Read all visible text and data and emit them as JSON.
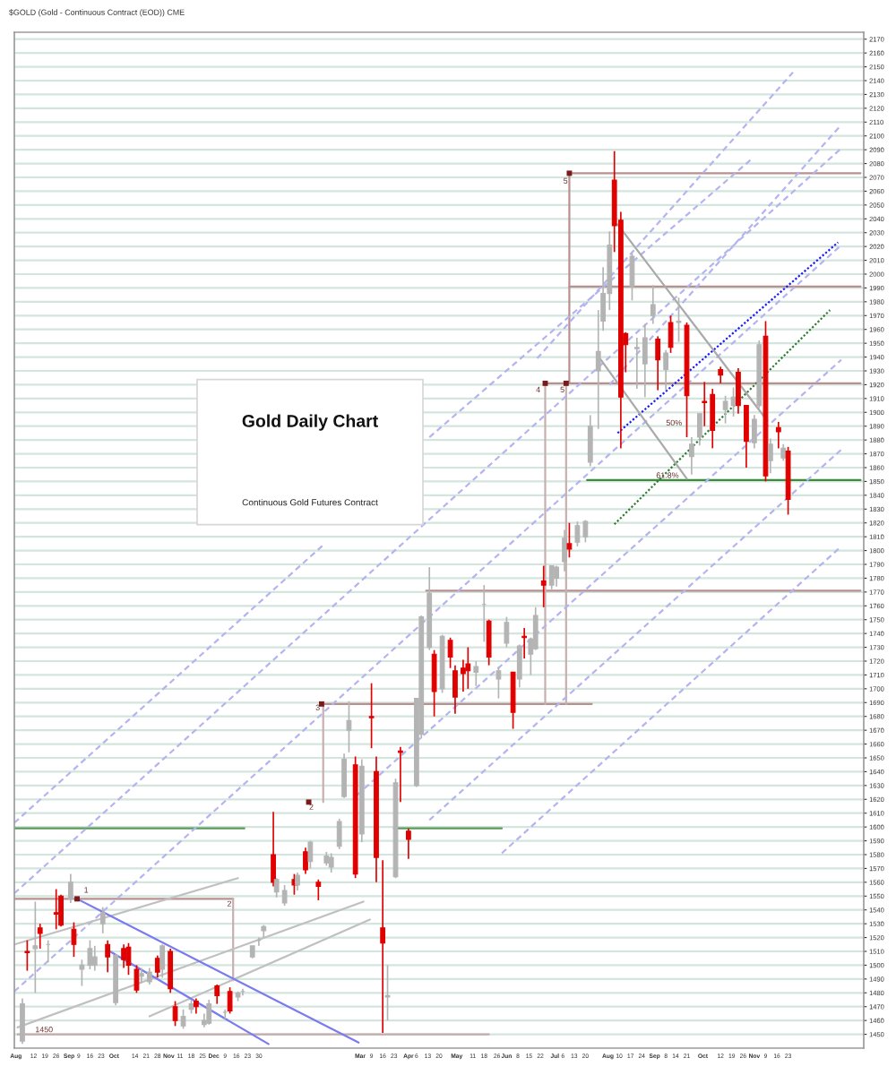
{
  "chart_data": {
    "type": "candlestick",
    "title": "Gold Daily Chart",
    "subtitle": "Continuous Gold Futures Contract",
    "annotations": [
      "$GOLD (Gold - Continuous Contract (EOD)) CME",
      {
        "text": "5",
        "x": "2020-07-09",
        "y": 2067
      },
      {
        "text": "4",
        "x": "2020-06-22",
        "y": 1916
      },
      {
        "text": "5",
        "x": "2020-07-07",
        "y": 1916
      },
      {
        "text": "3",
        "x": "2020-02-06",
        "y": 1686
      },
      {
        "text": "2",
        "x": "2020-02-02",
        "y": 1614
      },
      {
        "text": "1",
        "x": "2019-09-15",
        "y": 1554
      },
      {
        "text": "2",
        "x": "2019-12-13",
        "y": 1544
      },
      {
        "text": "50%",
        "x": "2020-09-18",
        "y": 1892
      },
      {
        "text": "61.8%",
        "x": "2020-09-16",
        "y": 1854
      },
      {
        "text": "1450",
        "x": "2019-08-24",
        "y": 1453
      }
    ],
    "x": [
      "2019-08-05",
      "2019-08-08",
      "2019-08-13",
      "2019-08-16",
      "2019-08-21",
      "2019-08-26",
      "2019-08-29",
      "2019-09-04",
      "2019-09-06",
      "2019-09-11",
      "2019-09-16",
      "2019-09-19",
      "2019-09-24",
      "2019-09-27",
      "2019-10-02",
      "2019-10-07",
      "2019-10-10",
      "2019-10-15",
      "2019-10-18",
      "2019-10-23",
      "2019-10-28",
      "2019-10-31",
      "2019-11-05",
      "2019-11-08",
      "2019-11-13",
      "2019-11-18",
      "2019-11-21",
      "2019-11-26",
      "2019-11-29",
      "2019-12-04",
      "2019-12-09",
      "2019-12-12",
      "2019-12-17",
      "2019-12-20",
      "2019-12-26",
      "2019-12-30",
      "2020-01-02",
      "2020-01-08",
      "2020-01-10",
      "2020-01-15",
      "2020-01-21",
      "2020-01-23",
      "2020-01-28",
      "2020-01-31",
      "2020-02-05",
      "2020-02-10",
      "2020-02-13",
      "2020-02-18",
      "2020-02-21",
      "2020-02-24",
      "2020-02-28",
      "2020-03-03",
      "2020-03-09",
      "2020-03-12",
      "2020-03-16",
      "2020-03-19",
      "2020-03-24",
      "2020-03-27",
      "2020-04-01",
      "2020-04-06",
      "2020-04-09",
      "2020-04-14",
      "2020-04-17",
      "2020-04-22",
      "2020-04-27",
      "2020-04-30",
      "2020-05-05",
      "2020-05-08",
      "2020-05-13",
      "2020-05-18",
      "2020-05-21",
      "2020-05-27",
      "2020-06-01",
      "2020-06-05",
      "2020-06-09",
      "2020-06-12",
      "2020-06-16",
      "2020-06-19",
      "2020-06-24",
      "2020-06-29",
      "2020-07-02",
      "2020-07-07",
      "2020-07-10",
      "2020-07-15",
      "2020-07-20",
      "2020-07-23",
      "2020-07-28",
      "2020-07-31",
      "2020-08-04",
      "2020-08-07",
      "2020-08-11",
      "2020-08-14",
      "2020-08-18",
      "2020-08-21",
      "2020-08-26",
      "2020-08-31",
      "2020-09-03",
      "2020-09-08",
      "2020-09-11",
      "2020-09-16",
      "2020-09-21",
      "2020-09-24",
      "2020-09-29",
      "2020-10-02",
      "2020-10-07",
      "2020-10-12",
      "2020-10-15",
      "2020-10-20",
      "2020-10-23",
      "2020-10-28",
      "2020-11-02",
      "2020-11-05",
      "2020-11-09",
      "2020-11-12",
      "2020-11-17",
      "2020-11-20",
      "2020-11-23"
    ],
    "ohlc": [
      [
        1445,
        1476,
        1443,
        1472
      ],
      [
        1510,
        1518,
        1496,
        1509
      ],
      [
        1512,
        1546,
        1480,
        1514
      ],
      [
        1527,
        1530,
        1512,
        1523
      ],
      [
        1515,
        1518,
        1502,
        1515
      ],
      [
        1538,
        1555,
        1526,
        1537
      ],
      [
        1550,
        1551,
        1528,
        1529
      ],
      [
        1548,
        1566,
        1545,
        1560
      ],
      [
        1526,
        1531,
        1506,
        1515
      ],
      [
        1497,
        1504,
        1485,
        1500
      ],
      [
        1500,
        1518,
        1497,
        1512
      ],
      [
        1500,
        1514,
        1496,
        1506
      ],
      [
        1530,
        1542,
        1523,
        1538
      ],
      [
        1515,
        1518,
        1495,
        1506
      ],
      [
        1473,
        1508,
        1471,
        1507
      ],
      [
        1512,
        1515,
        1498,
        1504
      ],
      [
        1513,
        1516,
        1493,
        1500
      ],
      [
        1497,
        1500,
        1480,
        1482
      ],
      [
        1492,
        1498,
        1487,
        1494
      ],
      [
        1488,
        1498,
        1486,
        1495
      ],
      [
        1505,
        1507,
        1491,
        1495
      ],
      [
        1497,
        1515,
        1491,
        1514
      ],
      [
        1510,
        1512,
        1480,
        1483
      ],
      [
        1470,
        1474,
        1456,
        1460
      ],
      [
        1456,
        1468,
        1454,
        1463
      ],
      [
        1468,
        1475,
        1465,
        1472
      ],
      [
        1474,
        1476,
        1465,
        1470
      ],
      [
        1457,
        1465,
        1455,
        1460
      ],
      [
        1458,
        1475,
        1457,
        1472
      ],
      [
        1485,
        1486,
        1472,
        1478
      ],
      [
        1466,
        1468,
        1461,
        1466
      ],
      [
        1481,
        1484,
        1465,
        1467
      ],
      [
        1477,
        1481,
        1474,
        1480
      ],
      [
        1481,
        1483,
        1478,
        1481
      ],
      [
        1506,
        1514,
        1505,
        1514
      ],
      [
        1518,
        1520,
        1514,
        1518
      ],
      [
        1525,
        1529,
        1520,
        1528
      ],
      [
        1580,
        1611,
        1557,
        1560
      ],
      [
        1553,
        1563,
        1549,
        1562
      ],
      [
        1545,
        1558,
        1543,
        1554
      ],
      [
        1562,
        1566,
        1551,
        1558
      ],
      [
        1558,
        1567,
        1554,
        1565
      ],
      [
        1582,
        1585,
        1566,
        1569
      ],
      [
        1575,
        1590,
        1570,
        1589
      ],
      [
        1560,
        1562,
        1547,
        1557
      ],
      [
        1574,
        1582,
        1572,
        1579
      ],
      [
        1571,
        1581,
        1567,
        1578
      ],
      [
        1586,
        1606,
        1584,
        1604
      ],
      [
        1622,
        1653,
        1621,
        1649
      ],
      [
        1670,
        1691,
        1654,
        1677
      ],
      [
        1645,
        1651,
        1563,
        1566
      ],
      [
        1595,
        1649,
        1589,
        1644
      ],
      [
        1680,
        1704,
        1657,
        1679
      ],
      [
        1640,
        1651,
        1560,
        1578
      ],
      [
        1527,
        1576,
        1451,
        1516
      ],
      [
        1477,
        1500,
        1460,
        1478
      ],
      [
        1564,
        1635,
        1563,
        1632
      ],
      [
        1655,
        1658,
        1618,
        1654
      ],
      [
        1597,
        1599,
        1577,
        1591
      ],
      [
        1630,
        1693,
        1629,
        1693
      ],
      [
        1667,
        1753,
        1664,
        1752
      ],
      [
        1730,
        1788,
        1728,
        1769
      ],
      [
        1725,
        1728,
        1680,
        1698
      ],
      [
        1700,
        1739,
        1697,
        1738
      ],
      [
        1735,
        1737,
        1715,
        1723
      ],
      [
        1713,
        1717,
        1682,
        1694
      ],
      [
        1715,
        1721,
        1698,
        1711
      ],
      [
        1718,
        1730,
        1700,
        1713
      ],
      [
        1712,
        1720,
        1702,
        1716
      ],
      [
        1761,
        1775,
        1734,
        1761
      ],
      [
        1749,
        1750,
        1717,
        1723
      ],
      [
        1707,
        1716,
        1693,
        1713
      ],
      [
        1733,
        1752,
        1730,
        1748
      ],
      [
        1712,
        1712,
        1671,
        1683
      ],
      [
        1707,
        1732,
        1701,
        1731
      ],
      [
        1738,
        1744,
        1722,
        1737
      ],
      [
        1725,
        1737,
        1710,
        1736
      ],
      [
        1729,
        1759,
        1728,
        1753
      ],
      [
        1778,
        1789,
        1759,
        1775
      ],
      [
        1775,
        1789,
        1772,
        1789
      ],
      [
        1780,
        1789,
        1774,
        1788
      ],
      [
        1792,
        1815,
        1785,
        1809
      ],
      [
        1805,
        1820,
        1795,
        1801
      ],
      [
        1806,
        1821,
        1803,
        1818
      ],
      [
        1810,
        1822,
        1806,
        1821
      ],
      [
        1864,
        1898,
        1861,
        1890
      ],
      [
        1930,
        1974,
        1888,
        1944
      ],
      [
        1966,
        2005,
        1959,
        1986
      ],
      [
        1986,
        2031,
        1974,
        2021
      ],
      [
        2068,
        2089,
        2016,
        2035
      ],
      [
        2039,
        2045,
        1874,
        1911
      ],
      [
        1957,
        1958,
        1929,
        1949
      ],
      [
        1991,
        2015,
        1981,
        2013
      ],
      [
        1946,
        1954,
        1917,
        1947
      ],
      [
        1935,
        1964,
        1911,
        1954
      ],
      [
        1970,
        1992,
        1964,
        1978
      ],
      [
        1953,
        1955,
        1916,
        1938
      ],
      [
        1931,
        1945,
        1916,
        1943
      ],
      [
        1965,
        1970,
        1943,
        1947
      ],
      [
        1965,
        1983,
        1951,
        1966
      ],
      [
        1963,
        1965,
        1882,
        1912
      ],
      [
        1868,
        1882,
        1855,
        1877
      ],
      [
        1882,
        1899,
        1876,
        1899
      ],
      [
        1908,
        1922,
        1890,
        1907
      ],
      [
        1913,
        1917,
        1874,
        1887
      ],
      [
        1931,
        1933,
        1921,
        1927
      ],
      [
        1902,
        1912,
        1892,
        1908
      ],
      [
        1905,
        1918,
        1897,
        1911
      ],
      [
        1929,
        1932,
        1899,
        1905
      ],
      [
        1905,
        1905,
        1860,
        1879
      ],
      [
        1878,
        1898,
        1874,
        1895
      ],
      [
        1905,
        1952,
        1903,
        1949
      ],
      [
        1955,
        1966,
        1850,
        1854
      ],
      [
        1865,
        1881,
        1856,
        1877
      ],
      [
        1889,
        1893,
        1874,
        1886
      ],
      [
        1867,
        1877,
        1865,
        1874
      ],
      [
        1872,
        1875,
        1826,
        1837
      ]
    ],
    "colors": [
      "#b4b4b4",
      "#e00000",
      "#b4b4b4",
      "#e00000",
      "#b4b4b4",
      "#e00000",
      "#e00000",
      "#b4b4b4",
      "#e00000",
      "#b4b4b4",
      "#b4b4b4",
      "#b4b4b4",
      "#b4b4b4",
      "#e00000",
      "#b4b4b4",
      "#e00000",
      "#e00000",
      "#e00000",
      "#b4b4b4",
      "#b4b4b4",
      "#e00000",
      "#b4b4b4",
      "#e00000",
      "#e00000",
      "#b4b4b4",
      "#b4b4b4",
      "#e00000",
      "#b4b4b4",
      "#b4b4b4",
      "#e00000",
      "#b4b4b4",
      "#e00000",
      "#b4b4b4",
      "#b4b4b4",
      "#b4b4b4",
      "#b4b4b4",
      "#b4b4b4",
      "#e00000",
      "#b4b4b4",
      "#b4b4b4",
      "#e00000",
      "#b4b4b4",
      "#e00000",
      "#b4b4b4",
      "#e00000",
      "#b4b4b4",
      "#b4b4b4",
      "#b4b4b4",
      "#b4b4b4",
      "#b4b4b4",
      "#e00000",
      "#b4b4b4",
      "#e00000",
      "#e00000",
      "#e00000",
      "#b4b4b4",
      "#b4b4b4",
      "#e00000",
      "#e00000",
      "#b4b4b4",
      "#b4b4b4",
      "#b4b4b4",
      "#e00000",
      "#b4b4b4",
      "#e00000",
      "#e00000",
      "#e00000",
      "#e00000",
      "#b4b4b4",
      "#b4b4b4",
      "#e00000",
      "#b4b4b4",
      "#b4b4b4",
      "#e00000",
      "#b4b4b4",
      "#e00000",
      "#b4b4b4",
      "#b4b4b4",
      "#e00000",
      "#b4b4b4",
      "#b4b4b4",
      "#b4b4b4",
      "#e00000",
      "#b4b4b4",
      "#b4b4b4",
      "#b4b4b4",
      "#b4b4b4",
      "#b4b4b4",
      "#b4b4b4",
      "#e00000",
      "#e00000",
      "#e00000",
      "#b4b4b4",
      "#b4b4b4",
      "#b4b4b4",
      "#b4b4b4",
      "#e00000",
      "#b4b4b4",
      "#e00000",
      "#b4b4b4",
      "#e00000",
      "#b4b4b4",
      "#b4b4b4",
      "#e00000",
      "#e00000",
      "#e00000",
      "#b4b4b4",
      "#b4b4b4",
      "#e00000",
      "#e00000",
      "#b4b4b4",
      "#b4b4b4",
      "#e00000",
      "#b4b4b4",
      "#e00000",
      "#b4b4b4",
      "#e00000"
    ],
    "series": [
      {
        "type": "line",
        "x": [
          "2020-07-10",
          "2021-01-07"
        ],
        "values": [
          2073,
          2073
        ],
        "color": "#b89090"
      },
      {
        "type": "line",
        "x": [
          "2020-07-10",
          "2021-01-07"
        ],
        "values": [
          1991,
          1991
        ],
        "color": "#b89090"
      },
      {
        "type": "line",
        "x": [
          "2020-06-25",
          "2021-01-07"
        ],
        "values": [
          1921,
          1921
        ],
        "color": "#b89090"
      },
      {
        "type": "line",
        "x": [
          "2020-04-12",
          "2021-01-07"
        ],
        "values": [
          1771,
          1771
        ],
        "color": "#b89090"
      },
      {
        "type": "line",
        "x": [
          "2020-02-07",
          "2020-07-24"
        ],
        "values": [
          1689,
          1689
        ],
        "color": "#b89090"
      },
      {
        "type": "line",
        "x": [
          "2020-07-10",
          "2020-07-10"
        ],
        "values": [
          2073,
          1921
        ],
        "color": "#b89090"
      },
      {
        "type": "line",
        "x": [
          "2020-06-25",
          "2020-06-25"
        ],
        "values": [
          1921,
          1689
        ],
        "color": "#c8b0b0"
      },
      {
        "type": "line",
        "x": [
          "2020-07-08",
          "2020-07-08"
        ],
        "values": [
          1921,
          1689
        ],
        "color": "#c8b0b0"
      },
      {
        "type": "line",
        "x": [
          "2020-02-08",
          "2020-02-08"
        ],
        "values": [
          1689,
          1618
        ],
        "color": "#c8b0b0"
      },
      {
        "type": "line",
        "x": [
          "2019-07-31",
          "2019-12-14"
        ],
        "values": [
          1548,
          1548
        ],
        "color": "#b89090"
      },
      {
        "type": "line",
        "x": [
          "2019-12-14",
          "2019-12-14"
        ],
        "values": [
          1548,
          1489
        ],
        "color": "#c8b0b0"
      },
      {
        "type": "line",
        "x": [
          "2019-08-02",
          "2020-05-21"
        ],
        "values": [
          1450,
          1450
        ],
        "color": "#c4acac"
      },
      {
        "type": "line",
        "x": [
          "2019-07-31",
          "2019-12-21"
        ],
        "values": [
          1599,
          1599
        ],
        "color": "#5a9a5a"
      },
      {
        "type": "line",
        "x": [
          "2020-03-23",
          "2020-05-29"
        ],
        "values": [
          1599,
          1599
        ],
        "color": "#5a9a5a"
      },
      {
        "type": "line",
        "x": [
          "2020-07-21",
          "2021-01-07"
        ],
        "values": [
          1851,
          1851
        ],
        "color": "#3c8c3c"
      },
      {
        "type": "line",
        "x": [
          "2020-08-09",
          "2020-12-24"
        ],
        "values": [
          1885,
          2023
        ],
        "color": "#1a1aff",
        "line_style": "dotted"
      },
      {
        "type": "line",
        "x": [
          "2020-08-07",
          "2020-12-19"
        ],
        "values": [
          1819,
          1974
        ],
        "color": "#2e7d32",
        "line_style": "dotted"
      },
      {
        "type": "line",
        "x": [
          "2019-07-31",
          "2020-12-26"
        ],
        "values": [
          1552,
          2091
        ],
        "color": "#b4b4f0",
        "line_style": "dashed"
      },
      {
        "type": "line",
        "x": [
          "2019-07-31",
          "2020-12-26"
        ],
        "values": [
          1481,
          2021
        ],
        "color": "#b4b4f0",
        "line_style": "dashed"
      },
      {
        "type": "line",
        "x": [
          "2019-07-31",
          "2020-02-08"
        ],
        "values": [
          1603,
          1804
        ],
        "color": "#b4b4f0",
        "line_style": "dashed"
      },
      {
        "type": "line",
        "x": [
          "2020-04-14",
          "2020-11-01"
        ],
        "values": [
          1882,
          2084
        ],
        "color": "#b4b4f0",
        "line_style": "dashed"
      },
      {
        "type": "line",
        "x": [
          "2020-02-29",
          "2020-12-26"
        ],
        "values": [
          1623,
          1938
        ],
        "color": "#b4b4f0",
        "line_style": "dashed"
      },
      {
        "type": "line",
        "x": [
          "2020-04-14",
          "2020-12-26"
        ],
        "values": [
          1605,
          1873
        ],
        "color": "#b4b4f0",
        "line_style": "dashed"
      },
      {
        "type": "line",
        "x": [
          "2020-05-29",
          "2020-12-26"
        ],
        "values": [
          1581,
          1803
        ],
        "color": "#b4b4f0",
        "line_style": "dashed"
      },
      {
        "type": "line",
        "x": [
          "2020-06-20",
          "2020-11-26"
        ],
        "values": [
          1939,
          2146
        ],
        "color": "#b4b4f0",
        "line_style": "dashed"
      },
      {
        "type": "line",
        "x": [
          "2020-08-04",
          "2020-12-26"
        ],
        "values": [
          1920,
          2108
        ],
        "color": "#b4b4f0",
        "line_style": "dashed"
      },
      {
        "type": "line",
        "x": [
          "2020-08-09",
          "2020-11-10"
        ],
        "values": [
          2036,
          1894
        ],
        "color": "#aaaaaa"
      },
      {
        "type": "line",
        "x": [
          "2020-07-29",
          "2020-09-21"
        ],
        "values": [
          1939,
          1852
        ],
        "color": "#aaaaaa"
      },
      {
        "type": "line",
        "x": [
          "2019-07-31",
          "2019-12-17"
        ],
        "values": [
          1515,
          1563
        ],
        "color": "#c0c0c0"
      },
      {
        "type": "line",
        "x": [
          "2019-08-02",
          "2020-03-04"
        ],
        "values": [
          1455,
          1546
        ],
        "color": "#c0c0c0"
      },
      {
        "type": "line",
        "x": [
          "2019-10-23",
          "2020-03-08"
        ],
        "values": [
          1463,
          1533
        ],
        "color": "#c0c0c0"
      },
      {
        "type": "line",
        "x": [
          "2019-09-08",
          "2020-03-01"
        ],
        "values": [
          1548,
          1444
        ],
        "color": "#7b7bf0"
      },
      {
        "type": "line",
        "x": [
          "2019-09-27",
          "2020-01-05"
        ],
        "values": [
          1511,
          1443
        ],
        "color": "#7b7bf0"
      },
      {
        "type": "scatter",
        "x": [
          "2019-09-08",
          "2020-01-30",
          "2020-02-07",
          "2020-06-25",
          "2020-07-08",
          "2020-07-10"
        ],
        "values": [
          1548,
          1618,
          1689,
          1921,
          1921,
          2073
        ],
        "color": "#7a1a1a",
        "marker": "square"
      }
    ],
    "xlim": [
      "2019-07-31",
      "2021-01-09"
    ],
    "xticks": [
      {
        "value": "2019-08-01",
        "label": "Aug"
      },
      {
        "value": "2019-08-12",
        "label": "12"
      },
      {
        "value": "2019-08-19",
        "label": "19"
      },
      {
        "value": "2019-08-26",
        "label": "26"
      },
      {
        "value": "2019-09-03",
        "label": "Sep"
      },
      {
        "value": "2019-09-09",
        "label": "9"
      },
      {
        "value": "2019-09-16",
        "label": "16"
      },
      {
        "value": "2019-09-23",
        "label": "23"
      },
      {
        "value": "2019-10-01",
        "label": "Oct"
      },
      {
        "value": "2019-10-14",
        "label": "14"
      },
      {
        "value": "2019-10-21",
        "label": "21"
      },
      {
        "value": "2019-10-28",
        "label": "28"
      },
      {
        "value": "2019-11-04",
        "label": "Nov"
      },
      {
        "value": "2019-11-11",
        "label": "11"
      },
      {
        "value": "2019-11-18",
        "label": "18"
      },
      {
        "value": "2019-11-25",
        "label": "25"
      },
      {
        "value": "2019-12-02",
        "label": "Dec"
      },
      {
        "value": "2019-12-09",
        "label": "9"
      },
      {
        "value": "2019-12-16",
        "label": "16"
      },
      {
        "value": "2019-12-23",
        "label": "23"
      },
      {
        "value": "2019-12-30",
        "label": "30"
      },
      {
        "value": "2020-03-02",
        "label": "Mar"
      },
      {
        "value": "2020-03-09",
        "label": "9"
      },
      {
        "value": "2020-03-16",
        "label": "16"
      },
      {
        "value": "2020-03-23",
        "label": "23"
      },
      {
        "value": "2020-04-01",
        "label": "Apr"
      },
      {
        "value": "2020-04-06",
        "label": "6"
      },
      {
        "value": "2020-04-13",
        "label": "13"
      },
      {
        "value": "2020-04-20",
        "label": "20"
      },
      {
        "value": "2020-05-01",
        "label": "May"
      },
      {
        "value": "2020-05-11",
        "label": "11"
      },
      {
        "value": "2020-05-18",
        "label": "18"
      },
      {
        "value": "2020-05-26",
        "label": "26"
      },
      {
        "value": "2020-06-01",
        "label": "Jun"
      },
      {
        "value": "2020-06-08",
        "label": "8"
      },
      {
        "value": "2020-06-15",
        "label": "15"
      },
      {
        "value": "2020-06-22",
        "label": "22"
      },
      {
        "value": "2020-07-01",
        "label": "Jul"
      },
      {
        "value": "2020-07-06",
        "label": "6"
      },
      {
        "value": "2020-07-13",
        "label": "13"
      },
      {
        "value": "2020-07-20",
        "label": "20"
      },
      {
        "value": "2020-08-03",
        "label": "Aug"
      },
      {
        "value": "2020-08-10",
        "label": "10"
      },
      {
        "value": "2020-08-17",
        "label": "17"
      },
      {
        "value": "2020-08-24",
        "label": "24"
      },
      {
        "value": "2020-09-01",
        "label": "Sep"
      },
      {
        "value": "2020-09-08",
        "label": "8"
      },
      {
        "value": "2020-09-14",
        "label": "14"
      },
      {
        "value": "2020-09-21",
        "label": "21"
      },
      {
        "value": "2020-10-01",
        "label": "Oct"
      },
      {
        "value": "2020-10-12",
        "label": "12"
      },
      {
        "value": "2020-10-19",
        "label": "19"
      },
      {
        "value": "2020-10-26",
        "label": "26"
      },
      {
        "value": "2020-11-02",
        "label": "Nov"
      },
      {
        "value": "2020-11-09",
        "label": "9"
      },
      {
        "value": "2020-11-16",
        "label": "16"
      },
      {
        "value": "2020-11-23",
        "label": "23"
      }
    ],
    "ylim": [
      1440,
      2175
    ],
    "yticks": [
      1450,
      1460,
      1470,
      1480,
      1490,
      1500,
      1510,
      1520,
      1530,
      1540,
      1550,
      1560,
      1570,
      1580,
      1590,
      1600,
      1610,
      1620,
      1630,
      1640,
      1650,
      1660,
      1670,
      1680,
      1690,
      1700,
      1710,
      1720,
      1730,
      1740,
      1750,
      1760,
      1770,
      1780,
      1790,
      1800,
      1810,
      1820,
      1830,
      1840,
      1850,
      1860,
      1870,
      1880,
      1890,
      1900,
      1910,
      1920,
      1930,
      1940,
      1950,
      1960,
      1970,
      1980,
      1990,
      2000,
      2010,
      2020,
      2030,
      2040,
      2050,
      2060,
      2070,
      2080,
      2090,
      2100,
      2110,
      2120,
      2130,
      2140,
      2150,
      2160,
      2170
    ],
    "grid": "y"
  }
}
